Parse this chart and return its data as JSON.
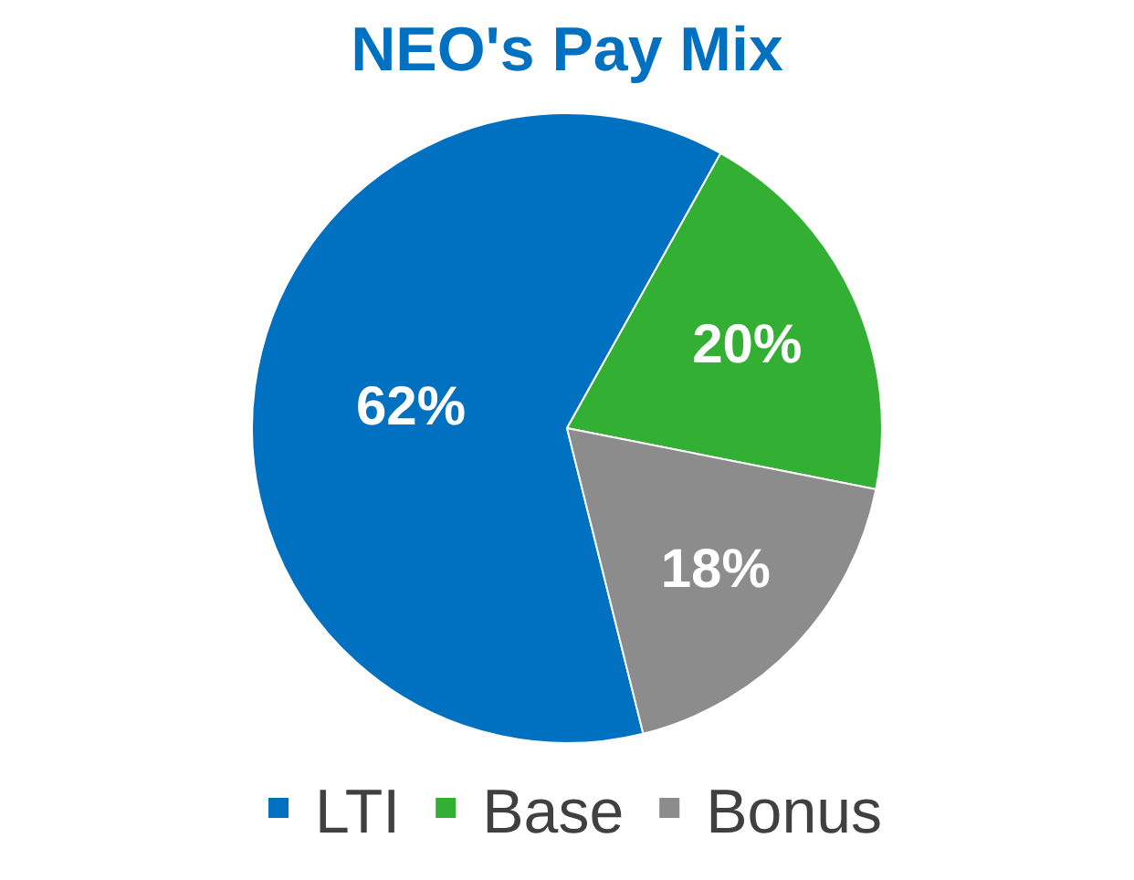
{
  "chart_data": {
    "type": "pie",
    "title": "NEO's Pay Mix",
    "categories": [
      "LTI",
      "Base",
      "Bonus"
    ],
    "values": [
      62,
      20,
      18
    ],
    "colors": [
      "#0070c0",
      "#33b033",
      "#8c8c8c"
    ],
    "value_labels": [
      "62%",
      "20%",
      "18%"
    ],
    "legend": "bottom"
  }
}
